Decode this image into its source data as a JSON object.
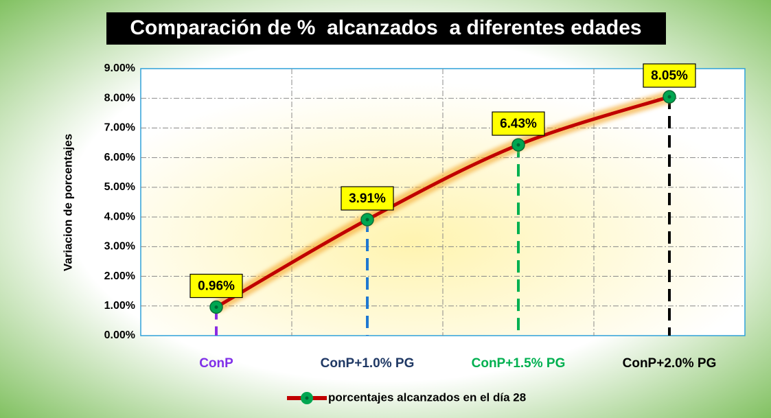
{
  "chart_data": {
    "type": "line",
    "title": "Comparación de %  alcanzados  a diferentes edades",
    "y_label": "Variacion de porcentajes",
    "categories": [
      "ConP",
      "ConP+1.0% PG",
      "ConP+1.5% PG",
      "ConP+2.0% PG"
    ],
    "category_colors": [
      "#7f2fe8",
      "#1f3864",
      "#00b050",
      "#000000"
    ],
    "drop_line_colors": [
      "#8a2be2",
      "#1f78d1",
      "#00b050",
      "#000000"
    ],
    "series": [
      {
        "name": "porcentajes alcanzados en el día 28",
        "color": "#c00000",
        "marker_color": "#00a651",
        "values": [
          0.96,
          3.91,
          6.43,
          8.05
        ],
        "value_labels": [
          "0.96%",
          "3.91%",
          "6.43%",
          "8.05%"
        ]
      }
    ],
    "ylim": [
      0,
      9
    ],
    "yticks": [
      {
        "value": 0,
        "label": "0.00%"
      },
      {
        "value": 1,
        "label": "1.00%"
      },
      {
        "value": 2,
        "label": "2.00%"
      },
      {
        "value": 3,
        "label": "3.00%"
      },
      {
        "value": 4,
        "label": "4.00%"
      },
      {
        "value": 5,
        "label": "5.00%"
      },
      {
        "value": 6,
        "label": "6.00%"
      },
      {
        "value": 7,
        "label": "7.00%"
      },
      {
        "value": 8,
        "label": "8.00%"
      },
      {
        "value": 9,
        "label": "9.00%"
      }
    ],
    "grid": true,
    "legend": "bottom"
  }
}
